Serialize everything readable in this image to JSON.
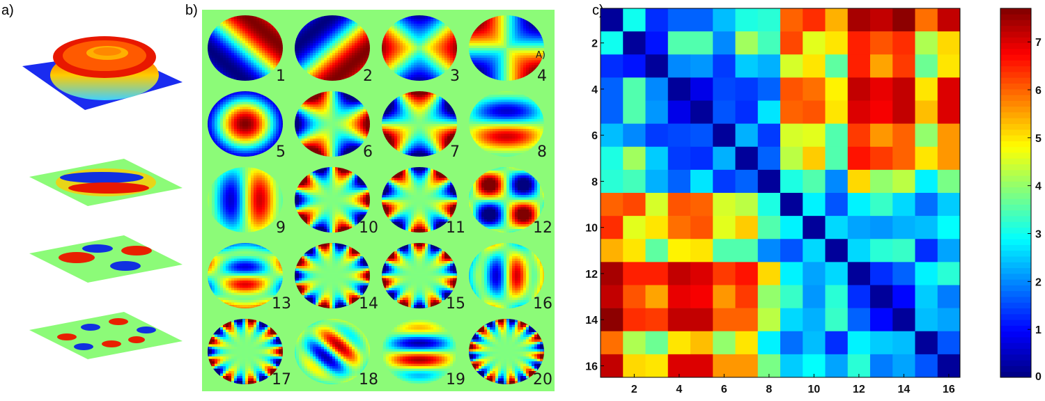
{
  "panels": {
    "a": {
      "label": "a)"
    },
    "b": {
      "label": "b)"
    },
    "c": {
      "label": "c)"
    }
  },
  "panel_b": {
    "background_color": "#8cfb78",
    "modes": [
      {
        "number": "1",
        "pattern": "diagonal"
      },
      {
        "number": "2",
        "pattern": "diagonal2"
      },
      {
        "number": "3",
        "pattern": "quad"
      },
      {
        "number": "4",
        "pattern": "quadx",
        "extra_label": "A)"
      },
      {
        "number": "5",
        "pattern": "center"
      },
      {
        "number": "6",
        "pattern": "petal6"
      },
      {
        "number": "7",
        "pattern": "petal6b"
      },
      {
        "number": "8",
        "pattern": "bands"
      },
      {
        "number": "9",
        "pattern": "vbands"
      },
      {
        "number": "10",
        "pattern": "petal10"
      },
      {
        "number": "11",
        "pattern": "petal10b"
      },
      {
        "number": "12",
        "pattern": "quad4"
      },
      {
        "number": "13",
        "pattern": "rings"
      },
      {
        "number": "14",
        "pattern": "petal14"
      },
      {
        "number": "15",
        "pattern": "petal14b"
      },
      {
        "number": "16",
        "pattern": "vrings"
      },
      {
        "number": "17",
        "pattern": "petal18"
      },
      {
        "number": "18",
        "pattern": "diagbands"
      },
      {
        "number": "19",
        "pattern": "hbands"
      },
      {
        "number": "20",
        "pattern": "petal20"
      }
    ]
  },
  "chart_data": {
    "type": "heatmap",
    "colormap": "jet",
    "x_ticks": [
      "2",
      "4",
      "6",
      "8",
      "10",
      "12",
      "14",
      "16"
    ],
    "y_ticks": [
      "2",
      "4",
      "6",
      "8",
      "10",
      "12",
      "14",
      "16"
    ],
    "colorbar_ticks": [
      "0",
      "1",
      "2",
      "3",
      "4",
      "5",
      "6",
      "7"
    ],
    "colorbar_range": [
      0,
      7.7
    ],
    "matrix": [
      [
        0.2,
        3.0,
        1.3,
        1.7,
        1.7,
        2.4,
        3.1,
        3.2,
        6.0,
        6.4,
        5.4,
        7.4,
        7.2,
        7.6,
        5.9,
        7.2
      ],
      [
        3.0,
        0.2,
        1.1,
        3.5,
        3.5,
        2.0,
        4.1,
        3.4,
        6.2,
        4.6,
        5.0,
        6.5,
        6.1,
        6.4,
        4.2,
        5.1
      ],
      [
        1.3,
        1.1,
        0.2,
        2.0,
        2.1,
        1.4,
        2.5,
        2.3,
        4.5,
        5.0,
        3.6,
        6.5,
        5.5,
        6.3,
        3.7,
        5.0
      ],
      [
        1.7,
        3.5,
        2.0,
        0.2,
        0.8,
        1.5,
        1.4,
        1.7,
        6.1,
        5.9,
        4.9,
        7.2,
        6.9,
        7.2,
        5.0,
        7.0
      ],
      [
        1.7,
        3.5,
        2.1,
        0.8,
        0.2,
        1.6,
        1.3,
        2.7,
        6.0,
        6.1,
        5.0,
        7.0,
        6.8,
        7.2,
        5.3,
        7.0
      ],
      [
        2.4,
        2.0,
        1.4,
        1.5,
        1.6,
        0.2,
        2.3,
        1.4,
        4.5,
        4.6,
        3.5,
        6.3,
        5.6,
        6.0,
        4.0,
        5.6
      ],
      [
        3.1,
        4.1,
        2.5,
        1.4,
        1.3,
        2.3,
        0.2,
        1.7,
        4.3,
        5.2,
        3.5,
        6.6,
        6.3,
        6.0,
        5.0,
        5.6
      ],
      [
        3.2,
        3.4,
        2.3,
        1.7,
        2.7,
        1.4,
        1.7,
        0.2,
        3.1,
        3.5,
        2.0,
        5.1,
        4.0,
        4.3,
        2.8,
        3.8
      ],
      [
        6.0,
        6.2,
        4.5,
        6.1,
        6.0,
        4.5,
        4.3,
        3.1,
        0.2,
        2.8,
        1.6,
        2.8,
        3.3,
        2.6,
        1.8,
        2.5
      ],
      [
        6.4,
        4.6,
        5.0,
        5.9,
        6.1,
        4.6,
        5.2,
        3.5,
        2.8,
        0.2,
        2.6,
        2.2,
        2.1,
        2.3,
        2.4,
        2.9
      ],
      [
        5.4,
        5.0,
        3.6,
        4.9,
        5.0,
        3.5,
        3.5,
        2.0,
        1.6,
        2.6,
        0.2,
        2.6,
        3.2,
        3.3,
        1.3,
        2.2
      ],
      [
        7.4,
        6.5,
        6.5,
        7.2,
        7.0,
        6.3,
        6.6,
        5.1,
        2.8,
        2.2,
        2.6,
        0.2,
        1.3,
        1.7,
        2.8,
        3.2
      ],
      [
        7.2,
        6.1,
        5.5,
        6.9,
        6.8,
        5.6,
        6.3,
        4.0,
        3.3,
        2.1,
        3.2,
        1.3,
        0.2,
        1.0,
        2.5,
        1.9
      ],
      [
        7.6,
        6.4,
        6.3,
        7.2,
        7.2,
        6.0,
        6.0,
        4.3,
        2.6,
        2.3,
        3.3,
        1.7,
        1.0,
        0.2,
        2.4,
        2.2
      ],
      [
        5.9,
        4.2,
        3.7,
        5.0,
        5.3,
        4.0,
        5.0,
        2.8,
        1.8,
        2.4,
        1.3,
        2.8,
        2.5,
        2.4,
        0.2,
        1.6
      ],
      [
        7.2,
        5.1,
        5.0,
        7.0,
        7.0,
        5.6,
        5.6,
        3.8,
        2.5,
        2.9,
        2.2,
        3.2,
        1.9,
        2.2,
        1.6,
        0.2
      ]
    ]
  }
}
